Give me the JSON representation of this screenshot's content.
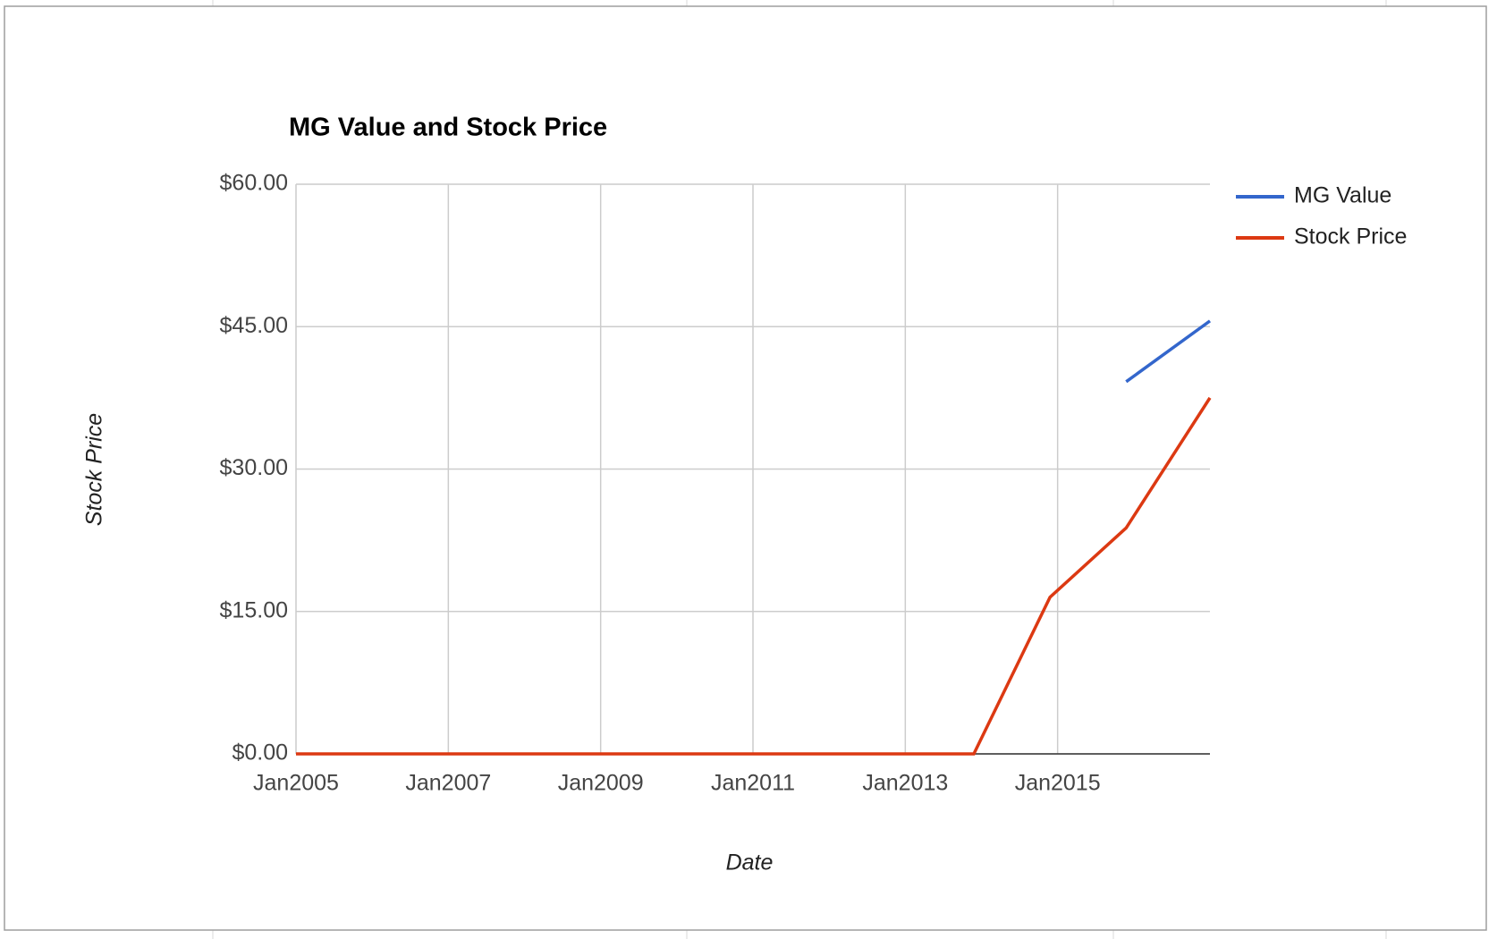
{
  "chart_data": {
    "type": "line",
    "title": "MG Value and Stock Price",
    "x_label": "Date",
    "y_label": "Stock Price",
    "x": [
      2005,
      2013.9,
      2014.9,
      2015.9,
      2017
    ],
    "series": [
      {
        "name": "MG Value",
        "color": "#3366cc",
        "values": [
          null,
          null,
          null,
          39.2,
          45.6
        ]
      },
      {
        "name": "Stock Price",
        "color": "#dc3912",
        "values": [
          0,
          0,
          16.5,
          23.8,
          37.5
        ]
      }
    ],
    "xlim": [
      2005,
      2017
    ],
    "xticks": [
      {
        "value": 2005,
        "label": "Jan2005"
      },
      {
        "value": 2007,
        "label": "Jan2007"
      },
      {
        "value": 2009,
        "label": "Jan2009"
      },
      {
        "value": 2011,
        "label": "Jan2011"
      },
      {
        "value": 2013,
        "label": "Jan2013"
      },
      {
        "value": 2015,
        "label": "Jan2015"
      }
    ],
    "ylim": [
      0,
      60
    ],
    "yticks": [
      {
        "value": 0,
        "label": "$0.00"
      },
      {
        "value": 15,
        "label": "$15.00"
      },
      {
        "value": 30,
        "label": "$30.00"
      },
      {
        "value": 45,
        "label": "$45.00"
      },
      {
        "value": 60,
        "label": "$60.00"
      }
    ],
    "grid": true,
    "legend": "right"
  }
}
